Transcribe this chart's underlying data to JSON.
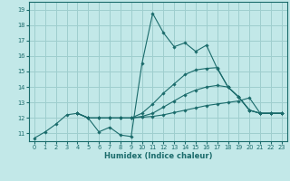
{
  "xlabel": "Humidex (Indice chaleur)",
  "xlim": [
    -0.5,
    23.5
  ],
  "ylim": [
    10.5,
    19.5
  ],
  "yticks": [
    11,
    12,
    13,
    14,
    15,
    16,
    17,
    18,
    19
  ],
  "xticks": [
    0,
    1,
    2,
    3,
    4,
    5,
    6,
    7,
    8,
    9,
    10,
    11,
    12,
    13,
    14,
    15,
    16,
    17,
    18,
    19,
    20,
    21,
    22,
    23
  ],
  "bg_color": "#c2e8e8",
  "grid_color": "#9ecece",
  "line_color": "#1a6b6b",
  "series": [
    {
      "x": [
        0,
        1,
        2,
        3,
        4,
        5,
        6,
        7,
        8,
        9,
        10,
        11,
        12,
        13,
        14,
        15,
        16,
        17,
        18,
        19,
        20,
        21,
        22,
        23
      ],
      "y": [
        10.7,
        11.1,
        11.6,
        12.2,
        12.3,
        12.0,
        11.1,
        11.4,
        10.9,
        10.8,
        15.5,
        18.75,
        17.5,
        16.6,
        16.85,
        16.3,
        16.7,
        15.2,
        14.0,
        13.35,
        12.5,
        12.3,
        12.3,
        12.3
      ]
    },
    {
      "x": [
        4,
        5,
        6,
        7,
        8,
        9,
        10,
        11,
        12,
        13,
        14,
        15,
        16,
        17,
        18,
        19,
        20,
        21,
        22,
        23
      ],
      "y": [
        12.3,
        12.0,
        12.0,
        12.0,
        12.0,
        12.0,
        12.05,
        12.1,
        12.2,
        12.35,
        12.5,
        12.65,
        12.8,
        12.9,
        13.0,
        13.1,
        13.3,
        12.3,
        12.3,
        12.3
      ]
    },
    {
      "x": [
        4,
        5,
        6,
        7,
        8,
        9,
        10,
        11,
        12,
        13,
        14,
        15,
        16,
        17,
        18,
        19,
        20,
        21,
        22,
        23
      ],
      "y": [
        12.3,
        12.0,
        12.0,
        12.0,
        12.0,
        12.0,
        12.1,
        12.3,
        12.7,
        13.1,
        13.5,
        13.8,
        14.0,
        14.1,
        14.0,
        13.35,
        12.5,
        12.3,
        12.3,
        12.3
      ]
    },
    {
      "x": [
        4,
        5,
        6,
        7,
        8,
        9,
        10,
        11,
        12,
        13,
        14,
        15,
        16,
        17,
        18,
        19,
        20,
        21,
        22,
        23
      ],
      "y": [
        12.3,
        12.0,
        12.0,
        12.0,
        12.0,
        12.0,
        12.3,
        12.9,
        13.6,
        14.2,
        14.8,
        15.1,
        15.2,
        15.25,
        14.0,
        13.35,
        12.5,
        12.3,
        12.3,
        12.3
      ]
    }
  ]
}
